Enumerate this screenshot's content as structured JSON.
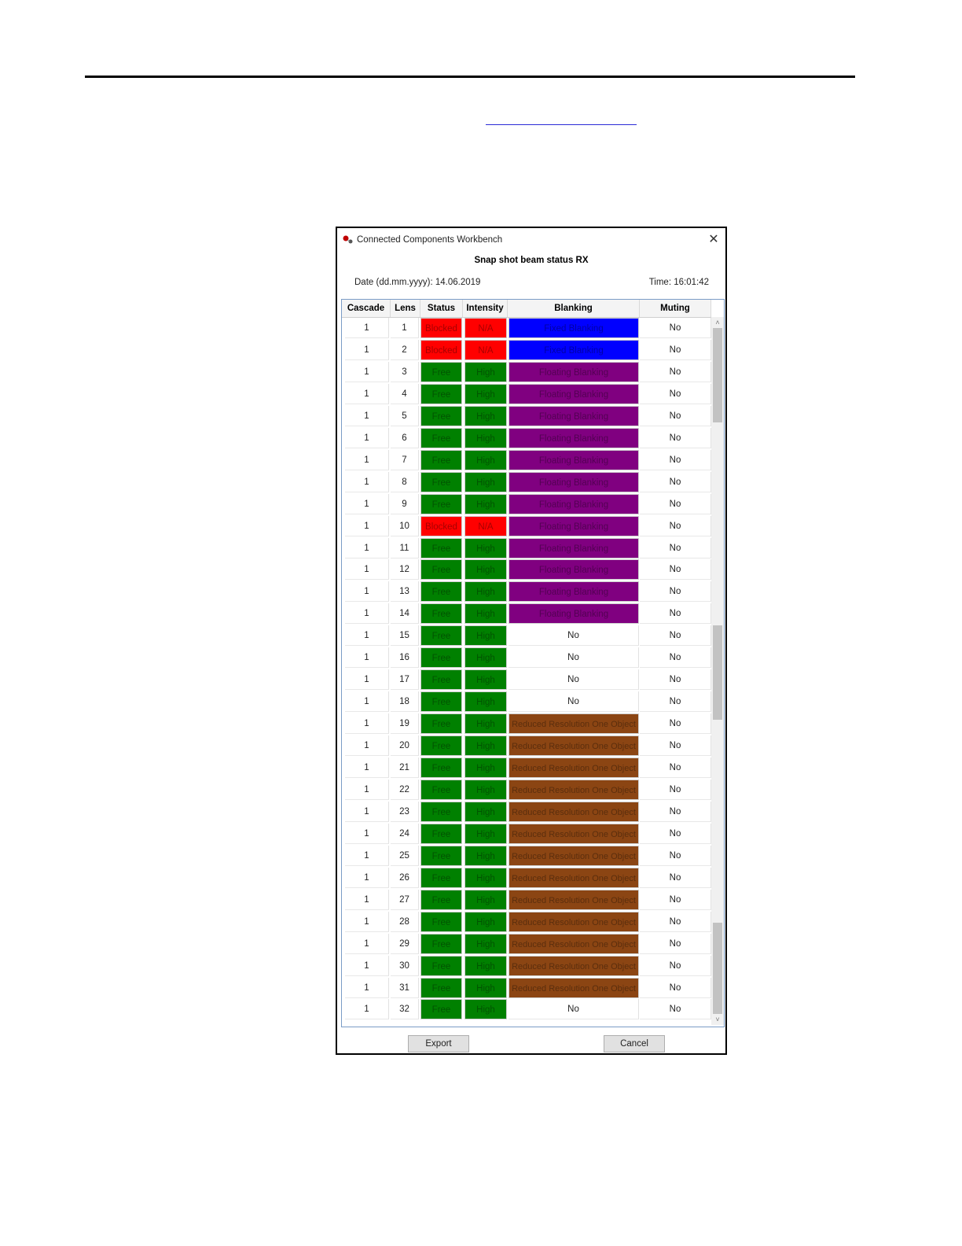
{
  "window": {
    "title": "Connected Components Workbench",
    "heading": "Snap shot beam status RX",
    "date_label": "Date (dd.mm.yyyy): 14.06.2019",
    "time_label": "Time: 16:01:42",
    "close_glyph": "✕"
  },
  "table": {
    "headers": [
      "Cascade",
      "Lens",
      "Status",
      "Intensity",
      "Blanking",
      "Muting"
    ],
    "colors": {
      "Blocked": "#ff0000",
      "N/A": "#ff0000",
      "Free": "#008000",
      "High": "#008000",
      "Fixed Blanking": "#0000ff",
      "Floating Blanking": "#800080",
      "Reduced Resolution One Object": "#8b4513"
    },
    "rows": [
      [
        "1",
        "1",
        "Blocked",
        "N/A",
        "Fixed Blanking",
        "No"
      ],
      [
        "1",
        "2",
        "Blocked",
        "N/A",
        "Fixed Blanking",
        "No"
      ],
      [
        "1",
        "3",
        "Free",
        "High",
        "Floating Blanking",
        "No"
      ],
      [
        "1",
        "4",
        "Free",
        "High",
        "Floating Blanking",
        "No"
      ],
      [
        "1",
        "5",
        "Free",
        "High",
        "Floating Blanking",
        "No"
      ],
      [
        "1",
        "6",
        "Free",
        "High",
        "Floating Blanking",
        "No"
      ],
      [
        "1",
        "7",
        "Free",
        "High",
        "Floating Blanking",
        "No"
      ],
      [
        "1",
        "8",
        "Free",
        "High",
        "Floating Blanking",
        "No"
      ],
      [
        "1",
        "9",
        "Free",
        "High",
        "Floating Blanking",
        "No"
      ],
      [
        "1",
        "10",
        "Blocked",
        "N/A",
        "Floating Blanking",
        "No"
      ],
      [
        "1",
        "11",
        "Free",
        "High",
        "Floating Blanking",
        "No"
      ],
      [
        "1",
        "12",
        "Free",
        "High",
        "Floating Blanking",
        "No"
      ],
      [
        "1",
        "13",
        "Free",
        "High",
        "Floating Blanking",
        "No"
      ],
      [
        "1",
        "14",
        "Free",
        "High",
        "Floating Blanking",
        "No"
      ],
      [
        "1",
        "15",
        "Free",
        "High",
        "No",
        "No"
      ],
      [
        "1",
        "16",
        "Free",
        "High",
        "No",
        "No"
      ],
      [
        "1",
        "17",
        "Free",
        "High",
        "No",
        "No"
      ],
      [
        "1",
        "18",
        "Free",
        "High",
        "No",
        "No"
      ],
      [
        "1",
        "19",
        "Free",
        "High",
        "Reduced Resolution One Object",
        "No"
      ],
      [
        "1",
        "20",
        "Free",
        "High",
        "Reduced Resolution One Object",
        "No"
      ],
      [
        "1",
        "21",
        "Free",
        "High",
        "Reduced Resolution One Object",
        "No"
      ],
      [
        "1",
        "22",
        "Free",
        "High",
        "Reduced Resolution One Object",
        "No"
      ],
      [
        "1",
        "23",
        "Free",
        "High",
        "Reduced Resolution One Object",
        "No"
      ],
      [
        "1",
        "24",
        "Free",
        "High",
        "Reduced Resolution One Object",
        "No"
      ],
      [
        "1",
        "25",
        "Free",
        "High",
        "Reduced Resolution One Object",
        "No"
      ],
      [
        "1",
        "26",
        "Free",
        "High",
        "Reduced Resolution One Object",
        "No"
      ],
      [
        "1",
        "27",
        "Free",
        "High",
        "Reduced Resolution One Object",
        "No"
      ],
      [
        "1",
        "28",
        "Free",
        "High",
        "Reduced Resolution One Object",
        "No"
      ],
      [
        "1",
        "29",
        "Free",
        "High",
        "Reduced Resolution One Object",
        "No"
      ],
      [
        "1",
        "30",
        "Free",
        "High",
        "Reduced Resolution One Object",
        "No"
      ],
      [
        "1",
        "31",
        "Free",
        "High",
        "Reduced Resolution One Object",
        "No"
      ],
      [
        "1",
        "32",
        "Free",
        "High",
        "No",
        "No"
      ]
    ]
  },
  "scrollbar": {
    "up_glyph": "˄",
    "down_glyph": "˅"
  },
  "buttons": {
    "export": "Export",
    "cancel": "Cancel"
  }
}
